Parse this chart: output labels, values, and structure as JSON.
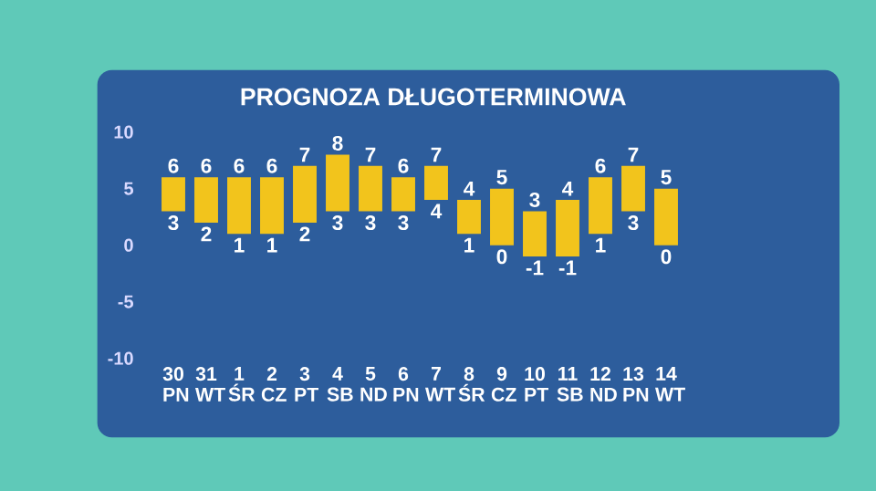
{
  "chart_data": {
    "type": "bar",
    "title": "PROGNOZA DŁUGOTERMINOWA",
    "categories": [
      "30 PN",
      "31 WT",
      "1 ŚR",
      "2 CZ",
      "3 PT",
      "4 SB",
      "5 ND",
      "6 PN",
      "7 WT",
      "8 ŚR",
      "9 CZ",
      "10 PT",
      "11 SB",
      "12 ND",
      "13 PN",
      "14 WT"
    ],
    "base": [
      3,
      2,
      1,
      1,
      2,
      3,
      3,
      3,
      4,
      1,
      0,
      -1,
      -1,
      1,
      3,
      0
    ],
    "values": [
      3,
      4,
      5,
      5,
      5,
      5,
      4,
      3,
      3,
      3,
      5,
      4,
      5,
      5,
      4,
      5
    ],
    "color": "#f2c41c",
    "ylim": [
      -10,
      10
    ],
    "yticks": [
      -10,
      -5,
      0,
      5,
      10
    ],
    "grid": false,
    "annotations": [
      {
        "text": "6",
        "x": "30 PN",
        "y": 6
      },
      {
        "text": "3",
        "x": "30 PN",
        "y": 3
      },
      {
        "text": "6",
        "x": "31 WT",
        "y": 6
      },
      {
        "text": "2",
        "x": "31 WT",
        "y": 2
      },
      {
        "text": "6",
        "x": "1 ŚR",
        "y": 6
      },
      {
        "text": "1",
        "x": "1 ŚR",
        "y": 1
      },
      {
        "text": "6",
        "x": "2 CZ",
        "y": 6
      },
      {
        "text": "1",
        "x": "2 CZ",
        "y": 1
      },
      {
        "text": "7",
        "x": "3 PT",
        "y": 7
      },
      {
        "text": "2",
        "x": "3 PT",
        "y": 2
      },
      {
        "text": "8",
        "x": "4 SB",
        "y": 8
      },
      {
        "text": "3",
        "x": "4 SB",
        "y": 3
      },
      {
        "text": "7",
        "x": "5 ND",
        "y": 7
      },
      {
        "text": "3",
        "x": "5 ND",
        "y": 3
      },
      {
        "text": "6",
        "x": "6 PN",
        "y": 6
      },
      {
        "text": "3",
        "x": "6 PN",
        "y": 3
      },
      {
        "text": "7",
        "x": "7 WT",
        "y": 7
      },
      {
        "text": "4",
        "x": "7 WT",
        "y": 4
      },
      {
        "text": "4",
        "x": "8 ŚR",
        "y": 4
      },
      {
        "text": "1",
        "x": "8 ŚR",
        "y": 1
      },
      {
        "text": "5",
        "x": "9 CZ",
        "y": 5
      },
      {
        "text": "0",
        "x": "9 CZ",
        "y": 0
      },
      {
        "text": "3",
        "x": "10 PT",
        "y": 3
      },
      {
        "text": "-1",
        "x": "10 PT",
        "y": -1
      },
      {
        "text": "4",
        "x": "11 SB",
        "y": 4
      },
      {
        "text": "-1",
        "x": "11 SB",
        "y": -1
      },
      {
        "text": "6",
        "x": "12 ND",
        "y": 6
      },
      {
        "text": "1",
        "x": "12 ND",
        "y": 1
      },
      {
        "text": "7",
        "x": "13 PN",
        "y": 7
      },
      {
        "text": "3",
        "x": "13 PN",
        "y": 3
      },
      {
        "text": "5",
        "x": "14 WT",
        "y": 5
      },
      {
        "text": "0",
        "x": "14 WT",
        "y": 0
      }
    ]
  }
}
